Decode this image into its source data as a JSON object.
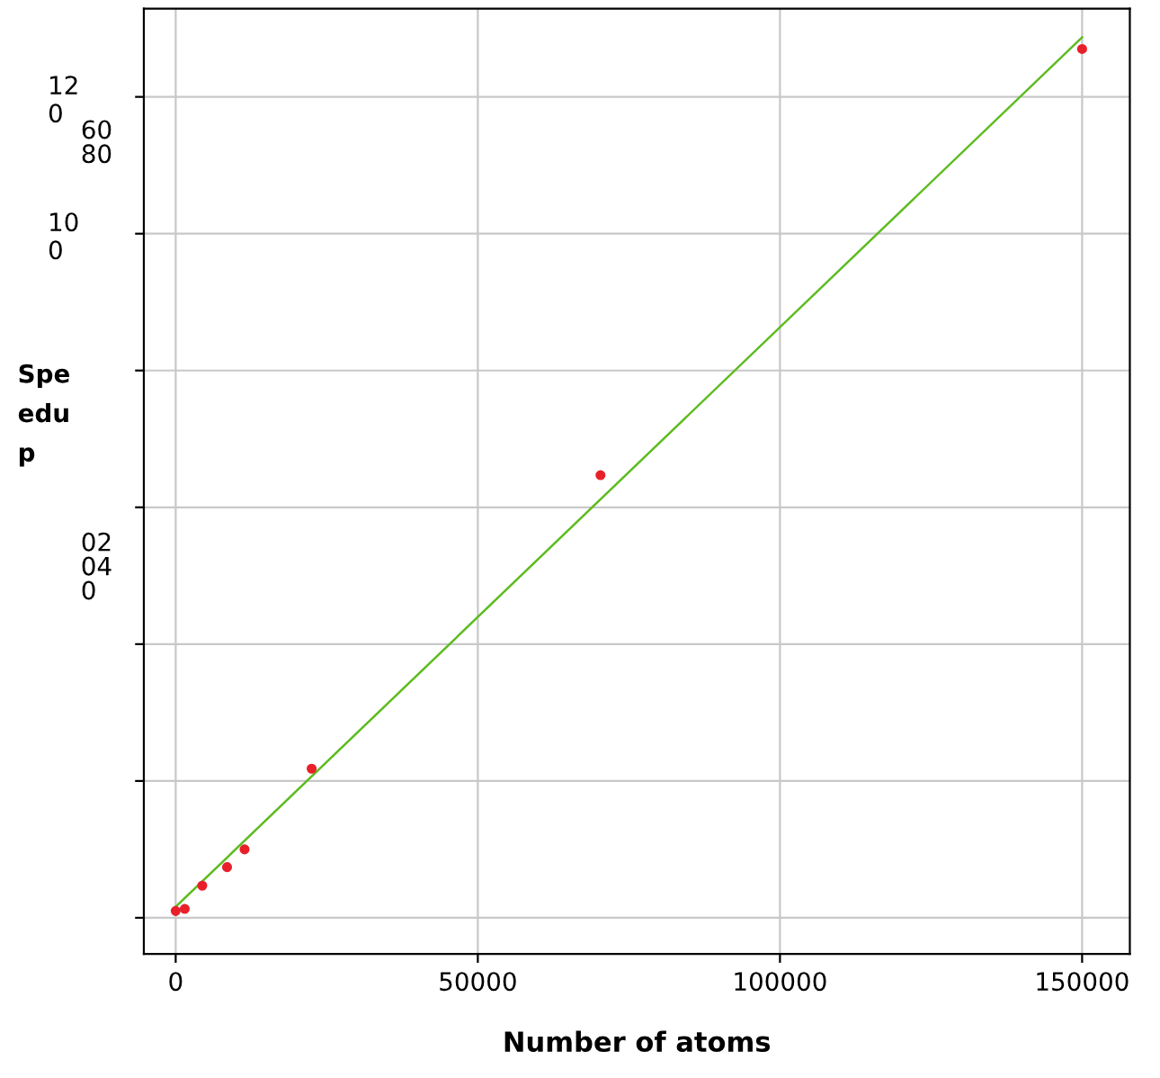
{
  "chart_data": {
    "type": "scatter",
    "xlabel": "Number of atoms",
    "ylabel": "Spe\nedu\np",
    "series": [
      {
        "color": "#e8202a",
        "marker": "circle",
        "x": [
          0,
          1500,
          4400,
          8500,
          11400,
          22500,
          70300,
          150000
        ],
        "values": [
          1,
          1.3,
          4.7,
          7.4,
          10,
          21.8,
          64.7,
          127
        ]
      },
      {
        "type": "line",
        "color": "#5dbb1f",
        "x": [
          0,
          150000
        ],
        "values": [
          1.6,
          128.7
        ]
      }
    ],
    "xlim": [
      -5270,
      157900
    ],
    "ylim": [
      -5.3,
      132.9
    ],
    "xticks": [
      0,
      50000,
      100000,
      150000
    ],
    "yticks": [
      {
        "value": 0,
        "label": null
      },
      {
        "value": 20,
        "label": null
      },
      {
        "value": 40,
        "label": null
      },
      {
        "value": 60,
        "label": null
      },
      {
        "value": 80,
        "label": null
      },
      100,
      120
    ],
    "annotations": [
      "60\n80",
      "02\n04\n0"
    ],
    "grid": true,
    "line_style": "solid"
  }
}
